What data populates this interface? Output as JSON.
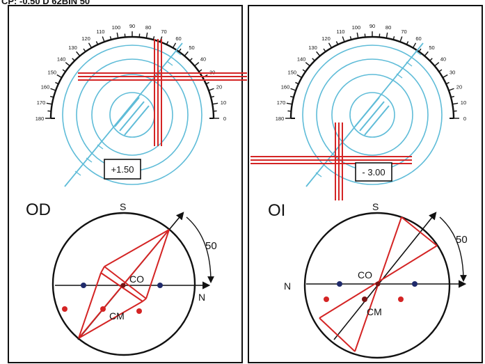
{
  "header_text": "CP: -0.50 D 62BIN 50",
  "colors": {
    "frame": "#111111",
    "rings": "#5fbcd8",
    "cross": "#d42424",
    "diagram": "#d42424",
    "dot_blue": "#1f2a6b",
    "dot_red": "#d42424",
    "dot_dark": "#7a1414"
  },
  "protractor": {
    "ticks": [
      "0",
      "10",
      "20",
      "30",
      "40",
      "50",
      "60",
      "70",
      "80",
      "90",
      "100",
      "110",
      "120",
      "130",
      "140",
      "150",
      "160",
      "170",
      "180"
    ]
  },
  "panels": [
    {
      "id": "od",
      "label": "OD",
      "power_box": "+1.50",
      "south_label": "S",
      "north_label": "N",
      "angle_label": "50",
      "co_label": "CO",
      "cm_label": "CM"
    },
    {
      "id": "oi",
      "label": "OI",
      "power_box": "- 3.00",
      "south_label": "S",
      "north_label": "N",
      "angle_label": "50",
      "co_label": "CO",
      "cm_label": "CM"
    }
  ]
}
